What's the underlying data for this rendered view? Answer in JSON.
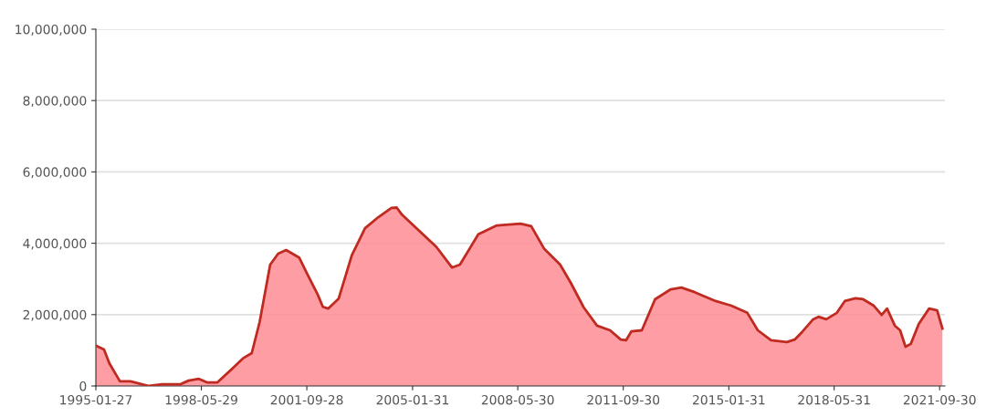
{
  "chart_data": {
    "type": "area",
    "x": [
      "1995-01-27",
      "1995-05",
      "1995-07",
      "1995-11",
      "1996-03",
      "1996-10",
      "1997-03",
      "1997-10",
      "1998-01",
      "1998-05",
      "1998-08",
      "1998-12",
      "1999-06",
      "1999-10",
      "2000-01",
      "2000-04",
      "2000-08",
      "2000-11",
      "2001-02",
      "2001-07",
      "2001-10",
      "2002-02",
      "2002-04",
      "2002-06",
      "2002-10",
      "2003-03",
      "2003-08",
      "2004-01",
      "2004-06",
      "2004-08",
      "2004-10",
      "2005-11",
      "2006-05",
      "2006-08",
      "2007-03",
      "2007-10",
      "2008-07",
      "2008-11",
      "2009-04",
      "2009-10",
      "2010-02",
      "2010-07",
      "2010-12",
      "2011-05",
      "2011-09",
      "2011-11",
      "2012-01",
      "2012-05",
      "2012-10",
      "2013-04",
      "2013-08",
      "2014-01",
      "2014-09",
      "2015-03",
      "2015-09",
      "2016-01",
      "2016-06",
      "2016-12",
      "2017-03",
      "2017-06",
      "2017-10",
      "2017-12",
      "2018-03",
      "2018-07",
      "2018-10",
      "2019-02",
      "2019-05",
      "2019-09",
      "2019-12",
      "2020-02",
      "2020-05",
      "2020-07",
      "2020-09",
      "2020-11",
      "2021-02",
      "2021-06",
      "2021-09",
      "2021-11"
    ],
    "series": [
      {
        "color": "#ff8c94",
        "values": [
          1130000,
          1020000,
          640000,
          130000,
          130000,
          0,
          50000,
          50000,
          150000,
          200000,
          100000,
          100000,
          510000,
          790000,
          920000,
          1790000,
          3400000,
          3710000,
          3810000,
          3600000,
          3150000,
          2560000,
          2220000,
          2170000,
          2450000,
          3660000,
          4420000,
          4730000,
          4990000,
          5000000,
          4800000,
          3900000,
          3320000,
          3400000,
          4250000,
          4500000,
          4550000,
          4480000,
          3840000,
          3400000,
          2890000,
          2200000,
          1690000,
          1560000,
          1300000,
          1280000,
          1530000,
          1560000,
          2430000,
          2710000,
          2760000,
          2630000,
          2380000,
          2250000,
          2050000,
          1560000,
          1280000,
          1230000,
          1300000,
          1530000,
          1870000,
          1940000,
          1870000,
          2050000,
          2380000,
          2460000,
          2430000,
          2250000,
          1990000,
          2170000,
          1690000,
          1560000,
          1100000,
          1180000,
          1740000,
          2170000,
          2120000,
          1610000
        ]
      }
    ],
    "xlim": [
      "1995-01-27",
      "2021-11-30"
    ],
    "xticks": [
      "1995-01-27",
      "1998-05-29",
      "2001-09-28",
      "2005-01-31",
      "2008-05-30",
      "2011-09-30",
      "2015-01-31",
      "2018-05-31",
      "2021-09-30"
    ],
    "ylim": [
      0,
      10000000
    ],
    "yticks": [
      {
        "value": 0,
        "label": "0"
      },
      {
        "value": 2000000,
        "label": "2,000,000"
      },
      {
        "value": 4000000,
        "label": "4,000,000"
      },
      {
        "value": 6000000,
        "label": "6,000,000"
      },
      {
        "value": 8000000,
        "label": "8,000,000"
      },
      {
        "value": 10000000,
        "label": "10,000,000"
      }
    ],
    "grid": "y",
    "marker": "none",
    "line_style": "solid"
  }
}
